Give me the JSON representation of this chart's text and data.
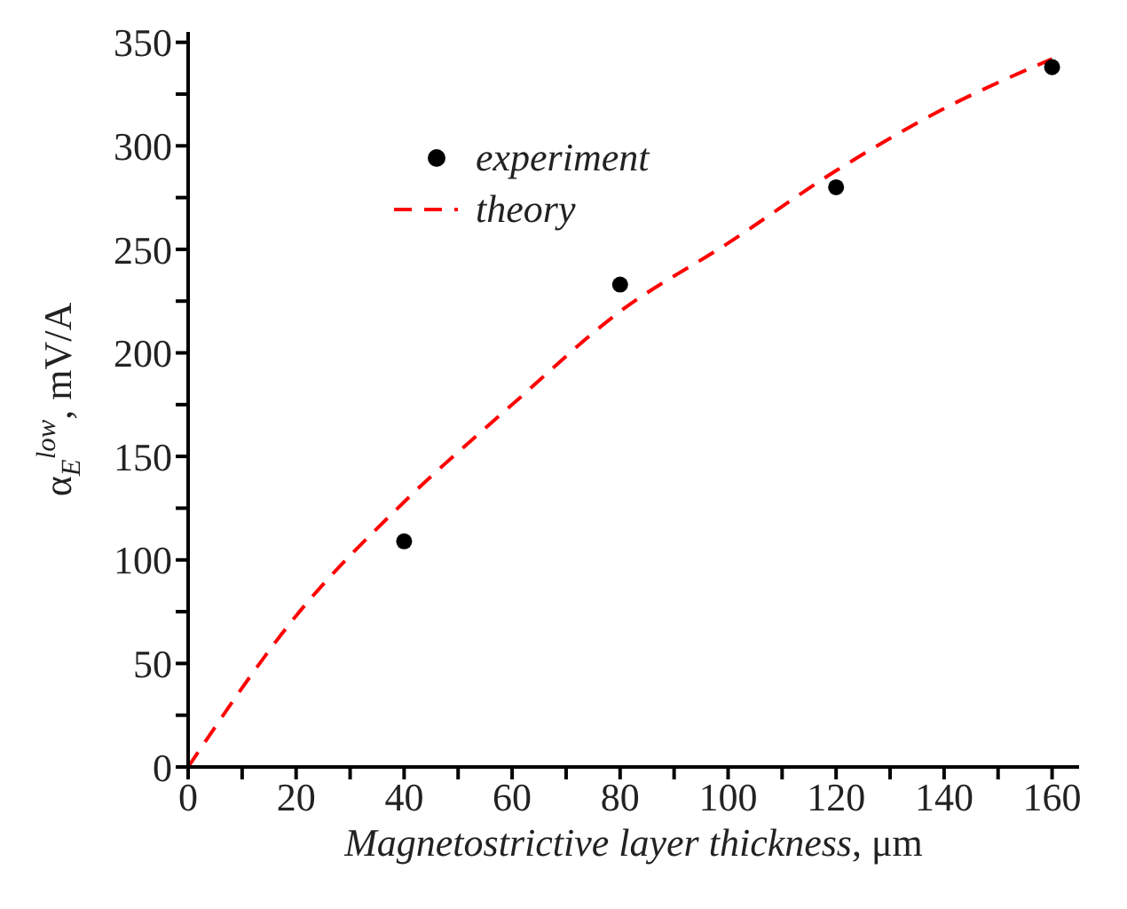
{
  "chart_data": {
    "type": "scatter",
    "xlabel": "Magnetostrictive layer thickness, μm",
    "ylabel": "α$_{E}$$^{low}$, mV/A",
    "xlim": [
      0,
      165
    ],
    "ylim": [
      0,
      355
    ],
    "xticks": [
      0,
      {
        "value": 10,
        "label": null
      },
      20,
      {
        "value": 30,
        "label": null
      },
      40,
      {
        "value": 50,
        "label": null
      },
      60,
      {
        "value": 70,
        "label": null
      },
      80,
      {
        "value": 90,
        "label": null
      },
      100,
      {
        "value": 110,
        "label": null
      },
      120,
      {
        "value": 130,
        "label": null
      },
      140,
      {
        "value": 150,
        "label": null
      },
      160
    ],
    "yticks": [
      0,
      {
        "value": 25,
        "label": null
      },
      50,
      {
        "value": 75,
        "label": null
      },
      100,
      {
        "value": 125,
        "label": null
      },
      150,
      {
        "value": 175,
        "label": null
      },
      200,
      {
        "value": 225,
        "label": null
      },
      250,
      {
        "value": 275,
        "label": null
      },
      300,
      {
        "value": 325,
        "label": null
      },
      350
    ],
    "grid": false,
    "legend": "top left",
    "series": [
      {
        "name": "experiment",
        "color": "#000000",
        "marker": "circle",
        "x": [
          40,
          80,
          120,
          160
        ],
        "values": [
          109,
          233,
          280,
          338
        ]
      },
      {
        "name": "theory",
        "type": "line",
        "color": "#ff0000",
        "marker": "none",
        "line_style": "dashed",
        "x": [
          0,
          20,
          40,
          60,
          80,
          100,
          120,
          140,
          160
        ],
        "values": [
          0,
          73,
          128,
          175,
          220,
          253,
          288,
          318,
          342
        ]
      }
    ]
  }
}
